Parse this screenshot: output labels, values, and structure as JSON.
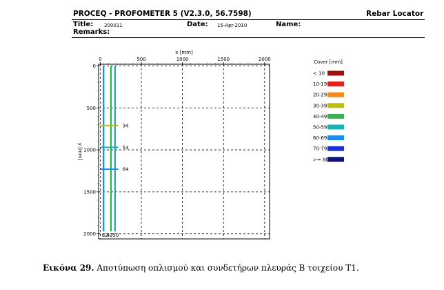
{
  "header": {
    "app_title": "PROCEQ - PROFOMETER 5 (V2.3.0, 56.7598)",
    "module": "Rebar Locator",
    "title_label": "Title:",
    "title_value": "200011",
    "date_label": "Date:",
    "date_value": "15-Apr-2010",
    "name_label": "Name:",
    "remarks_label": "Remarks:"
  },
  "legend": {
    "title": "Cover [mm]",
    "items": [
      {
        "label": "< 10",
        "color": "#9b0f0f"
      },
      {
        "label": "10-19",
        "color": "#e0241c"
      },
      {
        "label": "20-29",
        "color": "#f28a1e"
      },
      {
        "label": "30-39",
        "color": "#bcbc12"
      },
      {
        "label": "40-49",
        "color": "#34b34a"
      },
      {
        "label": "50-59",
        "color": "#18b4b4"
      },
      {
        "label": "60-69",
        "color": "#1c8ef0"
      },
      {
        "label": "70-79",
        "color": "#1c2ed8"
      },
      {
        "label": ">= 80",
        "color": "#10107a"
      }
    ]
  },
  "chart_data": {
    "type": "line",
    "xlabel": "x [mm]",
    "ylabel": "y [mm]",
    "xlim": [
      -20,
      2060
    ],
    "ylim": [
      2060,
      -20
    ],
    "xticks": [
      0,
      500,
      1000,
      1500,
      2000
    ],
    "yticks": [
      0,
      500,
      1000,
      1500,
      2000
    ],
    "grid": true,
    "grid_style": "dashed",
    "legend_position": "right",
    "vertical_bars": [
      {
        "x": 40,
        "y_start": 0,
        "y_end": 1970,
        "cover": 62,
        "color": "#1c8ef0",
        "label": "62"
      },
      {
        "x": 130,
        "y_start": 0,
        "y_end": 1970,
        "cover": 49,
        "color": "#34b34a",
        "label": "49"
      },
      {
        "x": 180,
        "y_start": 0,
        "y_end": 1970,
        "cover": 50,
        "color": "#18b4b4",
        "label": "50"
      }
    ],
    "horizontal_bars": [
      {
        "y": 710,
        "x_start": 0,
        "x_end": 220,
        "cover": 34,
        "color": "#bcbc12",
        "label": "34"
      },
      {
        "y": 970,
        "x_start": 0,
        "x_end": 220,
        "cover": 53,
        "color": "#18b4b4",
        "label": "53"
      },
      {
        "y": 1230,
        "x_start": 0,
        "x_end": 220,
        "cover": 64,
        "color": "#1c8ef0",
        "label": "64"
      }
    ]
  },
  "caption": {
    "bold": "Εικόνα 29.",
    "text": " Αποτύπωση οπλισμού και συνδετήρων πλευράς Β τοιχείου Τ1."
  }
}
